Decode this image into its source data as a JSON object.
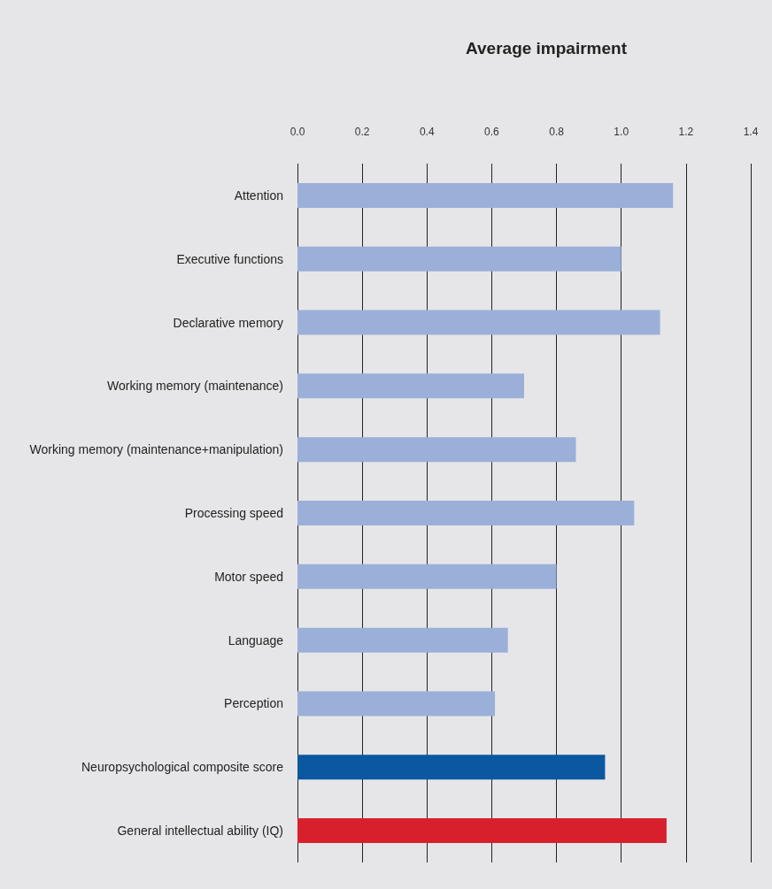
{
  "chart_data": {
    "type": "bar",
    "orientation": "horizontal",
    "title": "Average impairment",
    "categories": [
      "Attention",
      "Executive functions",
      "Declarative memory",
      "Working memory (maintenance)",
      "Working memory (maintenance+manipulation)",
      "Processing speed",
      "Motor speed",
      "Language",
      "Perception",
      "Neuropsychological composite score",
      "General intellectual ability (IQ)"
    ],
    "values": [
      1.16,
      1.0,
      1.12,
      0.7,
      0.86,
      1.04,
      0.8,
      0.65,
      0.61,
      0.95,
      1.14
    ],
    "colors": [
      "#9bb0d8",
      "#9bb0d8",
      "#9bb0d8",
      "#9bb0d8",
      "#9bb0d8",
      "#9bb0d8",
      "#9bb0d8",
      "#9bb0d8",
      "#9bb0d8",
      "#0b57a0",
      "#d7202c"
    ],
    "xlim": [
      0,
      1.4
    ],
    "xticks": [
      {
        "value": 0,
        "label": "0.0"
      },
      {
        "value": 0.2,
        "label": "0.2"
      },
      {
        "value": 0.4,
        "label": "0.4"
      },
      {
        "value": 0.6,
        "label": "0.6"
      },
      {
        "value": 0.8,
        "label": "0.8"
      },
      {
        "value": 1.0,
        "label": "1.0"
      },
      {
        "value": 1.2,
        "label": "1.2"
      },
      {
        "value": 1.4,
        "label": "1.4"
      }
    ],
    "grid": "x"
  }
}
